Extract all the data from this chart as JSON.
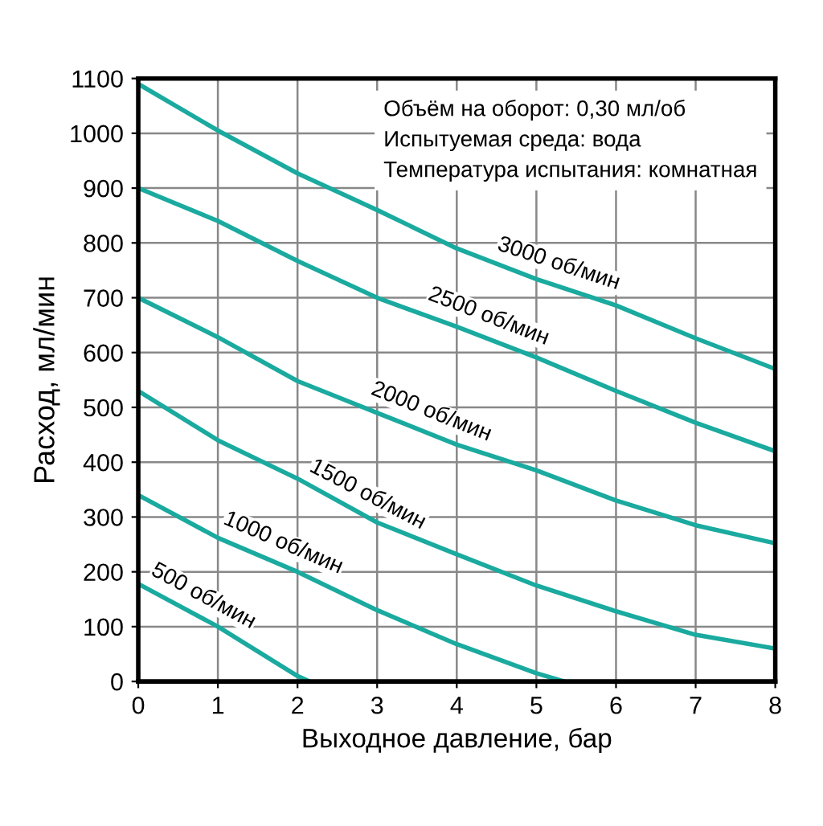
{
  "chart_data": {
    "type": "line",
    "xlabel": "Выходное давление, бар",
    "ylabel": "Расход, мл/мин",
    "xlim": [
      0,
      8
    ],
    "ylim": [
      0,
      1100
    ],
    "xticks": [
      0,
      1,
      2,
      3,
      4,
      5,
      6,
      7,
      8
    ],
    "yticks": [
      0,
      100,
      200,
      300,
      400,
      500,
      600,
      700,
      800,
      900,
      1000,
      1100
    ],
    "grid": true,
    "legend": false,
    "marker": "none",
    "line_style": "solid",
    "annotations": [
      "Объём на оборот: 0,30 мл/об",
      "Испытуемая среда: вода",
      "Температура испытания: комнатная"
    ],
    "series": [
      {
        "name": "3000 об/мин",
        "color": "#1aaa9f",
        "x": [
          0,
          1,
          2,
          3,
          4,
          5,
          6,
          7,
          8
        ],
        "values": [
          1090,
          1005,
          927,
          860,
          790,
          734,
          686,
          626,
          570
        ]
      },
      {
        "name": "2500 об/мин",
        "color": "#1aaa9f",
        "x": [
          0,
          1,
          2,
          3,
          4,
          5,
          6,
          7,
          8
        ],
        "values": [
          900,
          840,
          767,
          700,
          647,
          591,
          530,
          472,
          420
        ]
      },
      {
        "name": "2000 об/мин",
        "color": "#1aaa9f",
        "x": [
          0,
          1,
          2,
          3,
          4,
          5,
          6,
          7,
          8
        ],
        "values": [
          700,
          628,
          548,
          490,
          432,
          385,
          330,
          285,
          252
        ]
      },
      {
        "name": "1500 об/мин",
        "color": "#1aaa9f",
        "x": [
          0,
          1,
          2,
          3,
          4,
          5,
          6,
          7,
          8
        ],
        "values": [
          530,
          440,
          370,
          290,
          232,
          175,
          128,
          85,
          60
        ]
      },
      {
        "name": "1000 об/мин",
        "color": "#1aaa9f",
        "x": [
          0,
          1,
          2,
          3,
          4,
          5,
          5.35
        ],
        "values": [
          340,
          262,
          200,
          130,
          68,
          15,
          0
        ]
      },
      {
        "name": "500 об/мин",
        "color": "#1aaa9f",
        "x": [
          0,
          1,
          2,
          2.15
        ],
        "values": [
          178,
          100,
          10,
          0
        ]
      }
    ]
  }
}
